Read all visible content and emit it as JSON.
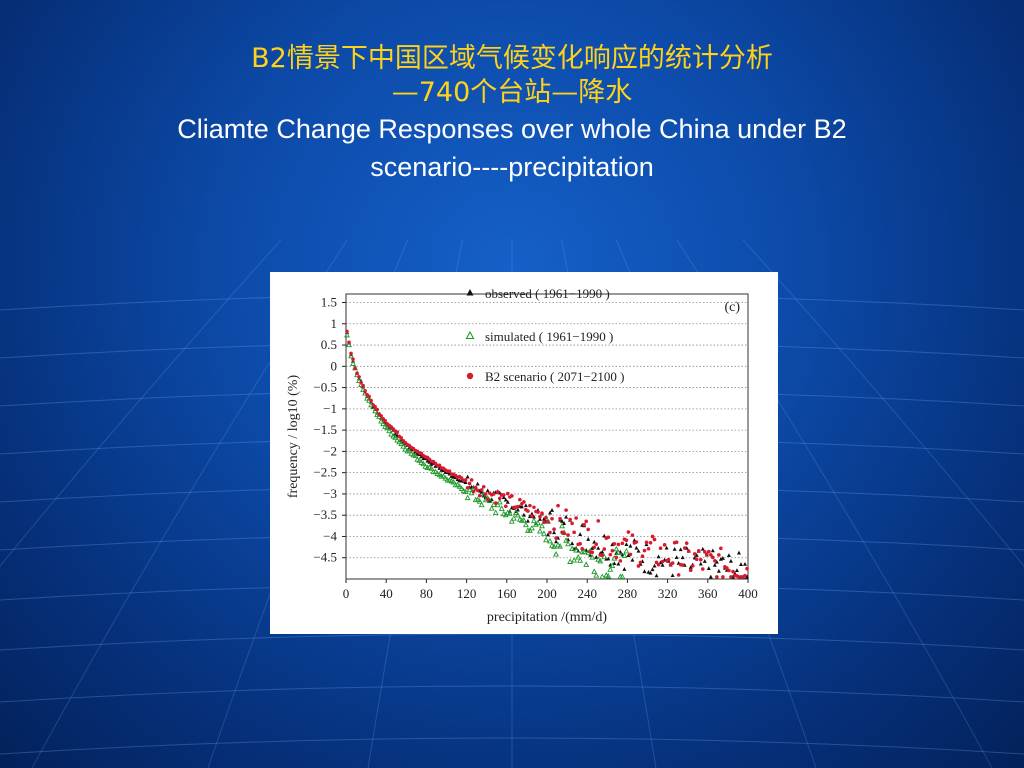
{
  "slide": {
    "title_zh_line1": "B2情景下中国区域气候变化响应的统计分析",
    "title_zh_line2": "—740个台站—降水",
    "title_en_line1": "Cliamte Change Responses over whole China under B2",
    "title_en_line2": "scenario----precipitation"
  },
  "colors": {
    "title_zh": "#ffd21a",
    "title_en": "#ffffff",
    "background": "#0c4aa8",
    "observed": "#111111",
    "simulated": "#1f9a2a",
    "b2": "#d81a2e"
  },
  "chart_data": {
    "type": "scatter",
    "panel_label": "(c)",
    "xlabel": "precipitation /(mm/d)",
    "ylabel": "frequency / log10 (%)",
    "xlim": [
      0,
      400
    ],
    "ylim": [
      -5,
      1.7
    ],
    "x_ticks": [
      "0",
      "40",
      "80",
      "120",
      "160",
      "200",
      "240",
      "280",
      "320",
      "360",
      "400"
    ],
    "y_ticks": [
      "1.5",
      "1",
      "0.5",
      "0",
      "−0.5",
      "−1",
      "−1.5",
      "−2",
      "−2.5",
      "−3",
      "−3.5",
      "−4",
      "−4.5"
    ],
    "grid": "horizontal dotted",
    "legend_placement": "top-right, inside plot",
    "series": [
      {
        "name": "observed ( 1961−1990 )",
        "marker": "filled triangle",
        "points": [
          [
            1,
            0.8
          ],
          [
            5,
            0.3
          ],
          [
            10,
            -0.1
          ],
          [
            20,
            -0.65
          ],
          [
            30,
            -1.05
          ],
          [
            40,
            -1.35
          ],
          [
            60,
            -1.85
          ],
          [
            80,
            -2.2
          ],
          [
            100,
            -2.5
          ],
          [
            120,
            -2.75
          ],
          [
            140,
            -3.0
          ],
          [
            160,
            -3.2
          ],
          [
            180,
            -3.45
          ],
          [
            200,
            -3.65
          ],
          [
            220,
            -3.85
          ],
          [
            240,
            -4.05
          ],
          [
            260,
            -4.25
          ],
          [
            280,
            -4.4
          ],
          [
            300,
            -4.5
          ],
          [
            320,
            -4.6
          ],
          [
            340,
            -4.65
          ],
          [
            360,
            -4.7
          ],
          [
            380,
            -4.75
          ],
          [
            400,
            -4.8
          ]
        ]
      },
      {
        "name": "simulated ( 1961−1990 )",
        "marker": "open triangle",
        "points": [
          [
            1,
            0.75
          ],
          [
            5,
            0.25
          ],
          [
            10,
            -0.15
          ],
          [
            20,
            -0.7
          ],
          [
            30,
            -1.1
          ],
          [
            40,
            -1.45
          ],
          [
            60,
            -1.95
          ],
          [
            80,
            -2.35
          ],
          [
            100,
            -2.65
          ],
          [
            120,
            -2.95
          ],
          [
            140,
            -3.2
          ],
          [
            160,
            -3.45
          ],
          [
            180,
            -3.7
          ],
          [
            200,
            -3.95
          ],
          [
            220,
            -4.2
          ],
          [
            240,
            -4.45
          ],
          [
            260,
            -4.6
          ],
          [
            280,
            -4.75
          ]
        ]
      },
      {
        "name": "B2 scenario ( 2071−2100 )",
        "marker": "filled circle",
        "points": [
          [
            1,
            0.8
          ],
          [
            5,
            0.3
          ],
          [
            10,
            -0.1
          ],
          [
            20,
            -0.62
          ],
          [
            30,
            -1.0
          ],
          [
            40,
            -1.3
          ],
          [
            60,
            -1.8
          ],
          [
            80,
            -2.15
          ],
          [
            100,
            -2.45
          ],
          [
            120,
            -2.7
          ],
          [
            140,
            -2.95
          ],
          [
            160,
            -3.15
          ],
          [
            180,
            -3.35
          ],
          [
            200,
            -3.55
          ],
          [
            220,
            -3.75
          ],
          [
            240,
            -3.95
          ],
          [
            260,
            -4.1
          ],
          [
            280,
            -4.25
          ],
          [
            300,
            -4.35
          ],
          [
            320,
            -4.45
          ],
          [
            340,
            -4.55
          ],
          [
            360,
            -4.62
          ],
          [
            380,
            -4.7
          ],
          [
            400,
            -4.75
          ]
        ]
      }
    ]
  }
}
